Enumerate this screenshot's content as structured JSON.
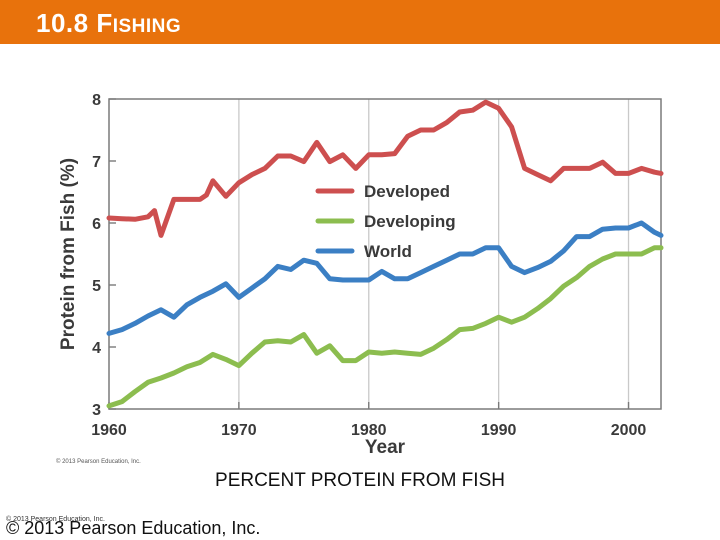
{
  "header": {
    "title_num": "10.8 ",
    "title_first": "F",
    "title_rest": "ISHING",
    "color": "#e8720c"
  },
  "caption": "PERCENT PROTEIN FROM FISH",
  "copyright_main": "© 2013 Pearson Education, Inc.",
  "copyright_small": "© 2013 Pearson Education, Inc.",
  "chart_data": {
    "type": "line",
    "title": "",
    "xlabel": "Year",
    "ylabel": "Protein from Fish (%)",
    "xlim": [
      1960,
      2003
    ],
    "ylim": [
      3,
      8
    ],
    "xticks": [
      1960,
      1970,
      1980,
      1990,
      2000
    ],
    "yticks": [
      3,
      4,
      5,
      6,
      7,
      8
    ],
    "grid": "vertical",
    "legend": "center-right",
    "credit": "© 2013 Pearson Education, Inc.",
    "series": [
      {
        "name": "Developed",
        "color": "#cd4f4f",
        "x": [
          1960,
          1961,
          1962,
          1963,
          1963.5,
          1964,
          1965,
          1966,
          1967,
          1967.5,
          1968,
          1969,
          1970,
          1971,
          1972,
          1973,
          1974,
          1975,
          1976,
          1977,
          1978,
          1979,
          1980,
          1981,
          1982,
          1983,
          1984,
          1985,
          1986,
          1987,
          1988,
          1989,
          1990,
          1991,
          1992,
          1993,
          1994,
          1995,
          1996,
          1997,
          1998,
          1999,
          2000,
          2001,
          2002,
          2002.5
        ],
        "y": [
          6.08,
          6.07,
          6.06,
          6.1,
          6.2,
          5.8,
          6.38,
          6.38,
          6.38,
          6.45,
          6.68,
          6.43,
          6.65,
          6.78,
          6.88,
          7.08,
          7.08,
          6.99,
          7.3,
          6.99,
          7.1,
          6.88,
          7.1,
          7.1,
          7.12,
          7.4,
          7.5,
          7.5,
          7.62,
          7.79,
          7.82,
          7.95,
          7.85,
          7.55,
          6.88,
          6.78,
          6.68,
          6.88,
          6.88,
          6.88,
          6.98,
          6.8,
          6.8,
          6.88,
          6.82,
          6.8
        ]
      },
      {
        "name": "Developing",
        "color": "#8cbd4f",
        "x": [
          1960,
          1961,
          1962,
          1963,
          1964,
          1965,
          1966,
          1967,
          1968,
          1969,
          1970,
          1971,
          1972,
          1973,
          1974,
          1975,
          1976,
          1977,
          1977.5,
          1978,
          1979,
          1980,
          1981,
          1982,
          1983,
          1984,
          1985,
          1986,
          1987,
          1988,
          1989,
          1990,
          1991,
          1992,
          1993,
          1994,
          1995,
          1996,
          1997,
          1998,
          1999,
          2000,
          2001,
          2002,
          2002.5
        ],
        "y": [
          3.05,
          3.12,
          3.28,
          3.43,
          3.5,
          3.58,
          3.68,
          3.75,
          3.88,
          3.8,
          3.7,
          3.9,
          4.08,
          4.1,
          4.08,
          4.2,
          3.9,
          4.02,
          3.9,
          3.78,
          3.78,
          3.92,
          3.9,
          3.92,
          3.9,
          3.88,
          3.98,
          4.12,
          4.28,
          4.3,
          4.38,
          4.48,
          4.4,
          4.48,
          4.62,
          4.78,
          4.98,
          5.12,
          5.3,
          5.42,
          5.5,
          5.5,
          5.5,
          5.6,
          5.6
        ]
      },
      {
        "name": "World",
        "color": "#3b7fc4",
        "x": [
          1960,
          1961,
          1962,
          1963,
          1964,
          1965,
          1966,
          1967,
          1968,
          1969,
          1970,
          1971,
          1972,
          1973,
          1974,
          1975,
          1976,
          1977,
          1978,
          1979,
          1980,
          1981,
          1982,
          1983,
          1984,
          1985,
          1986,
          1987,
          1988,
          1989,
          1990,
          1991,
          1992,
          1993,
          1994,
          1995,
          1996,
          1997,
          1998,
          1999,
          2000,
          2001,
          2002,
          2002.5
        ],
        "y": [
          4.22,
          4.28,
          4.38,
          4.5,
          4.6,
          4.48,
          4.68,
          4.8,
          4.9,
          5.02,
          4.8,
          4.95,
          5.1,
          5.3,
          5.25,
          5.4,
          5.35,
          5.1,
          5.08,
          5.08,
          5.08,
          5.22,
          5.1,
          5.1,
          5.2,
          5.3,
          5.4,
          5.5,
          5.5,
          5.6,
          5.6,
          5.3,
          5.2,
          5.28,
          5.38,
          5.55,
          5.78,
          5.78,
          5.9,
          5.92,
          5.92,
          6.0,
          5.85,
          5.8
        ]
      }
    ]
  }
}
